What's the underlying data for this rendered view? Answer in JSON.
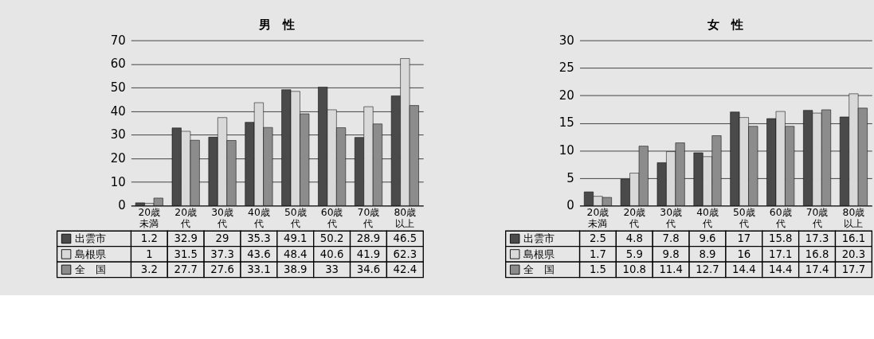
{
  "chart_data": [
    {
      "type": "bar",
      "title": "男　性",
      "categories": [
        "20歳未満",
        "20歳代",
        "30歳代",
        "40歳代",
        "50歳代",
        "60歳代",
        "70歳代",
        "80歳以上"
      ],
      "legend": "bottom left",
      "series": [
        {
          "name": "出雲市",
          "color": "#4a4a4a",
          "values": [
            1.2,
            32.9,
            29,
            35.3,
            49.1,
            50.2,
            28.9,
            46.5
          ]
        },
        {
          "name": "島根県",
          "color": "#d9d9d9",
          "values": [
            1,
            31.5,
            37.3,
            43.6,
            48.4,
            40.6,
            41.9,
            62.3
          ]
        },
        {
          "name": "全　国",
          "color": "#8c8c8c",
          "values": [
            3.2,
            27.7,
            27.6,
            33.1,
            38.9,
            33,
            34.6,
            42.4
          ]
        }
      ],
      "ylim": [
        0,
        70
      ],
      "yticks": [
        0,
        10,
        20,
        30,
        40,
        50,
        60,
        70
      ],
      "grid": "y",
      "data_labels": true
    },
    {
      "type": "bar",
      "title": "女　性",
      "categories": [
        "20歳未満",
        "20歳代",
        "30歳代",
        "40歳代",
        "50歳代",
        "60歳代",
        "70歳代",
        "80歳以上"
      ],
      "legend": "bottom left",
      "series": [
        {
          "name": "出雲市",
          "color": "#4a4a4a",
          "values": [
            2.5,
            4.8,
            7.8,
            9.6,
            17,
            15.8,
            17.3,
            16.1
          ]
        },
        {
          "name": "島根県",
          "color": "#d9d9d9",
          "values": [
            1.7,
            5.9,
            9.8,
            8.9,
            16,
            17.1,
            16.8,
            20.3
          ]
        },
        {
          "name": "全　国",
          "color": "#8c8c8c",
          "values": [
            1.5,
            10.8,
            11.4,
            12.7,
            14.4,
            14.4,
            17.4,
            17.7
          ]
        }
      ],
      "ylim": [
        0,
        30
      ],
      "yticks": [
        0,
        5,
        10,
        15,
        20,
        25,
        30
      ],
      "grid": "y",
      "data_labels": true
    }
  ]
}
